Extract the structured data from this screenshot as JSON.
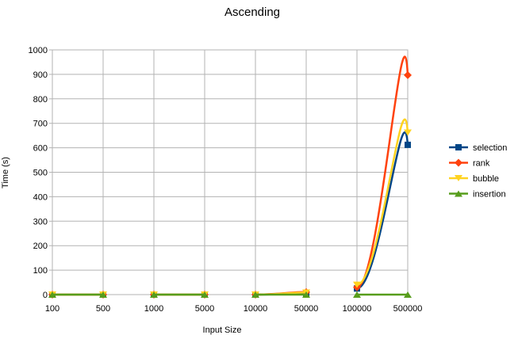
{
  "chart_data": {
    "type": "line",
    "title": "Ascending",
    "xlabel": "Input Size",
    "ylabel": "Time (s)",
    "ylim": [
      0,
      1000
    ],
    "yticks": [
      0,
      100,
      200,
      300,
      400,
      500,
      600,
      700,
      800,
      900,
      1000
    ],
    "grid": true,
    "legend_position": "right",
    "smoothed": true,
    "groups": [
      {
        "categories": [
          "100",
          "500"
        ]
      },
      {
        "categories": [
          "1000",
          "5000"
        ]
      },
      {
        "categories": [
          "10000",
          "50000"
        ]
      },
      {
        "categories": [
          "100000",
          "500000"
        ]
      }
    ],
    "series": [
      {
        "name": "selection",
        "color": "#004586",
        "marker": "square",
        "values": [
          [
            0,
            0
          ],
          [
            0,
            0
          ],
          [
            0,
            5
          ],
          [
            25,
            612
          ]
        ]
      },
      {
        "name": "rank",
        "color": "#ff420e",
        "marker": "diamond",
        "values": [
          [
            0,
            0
          ],
          [
            0,
            0
          ],
          [
            0,
            10
          ],
          [
            30,
            897
          ]
        ]
      },
      {
        "name": "bubble",
        "color": "#ffd320",
        "marker": "triangle-down",
        "values": [
          [
            0,
            0
          ],
          [
            0,
            0
          ],
          [
            0,
            8
          ],
          [
            40,
            662
          ]
        ]
      },
      {
        "name": "insertion",
        "color": "#579d1c",
        "marker": "triangle-up",
        "values": [
          [
            0,
            0
          ],
          [
            0,
            0
          ],
          [
            0,
            0
          ],
          [
            0,
            0
          ]
        ]
      }
    ]
  }
}
